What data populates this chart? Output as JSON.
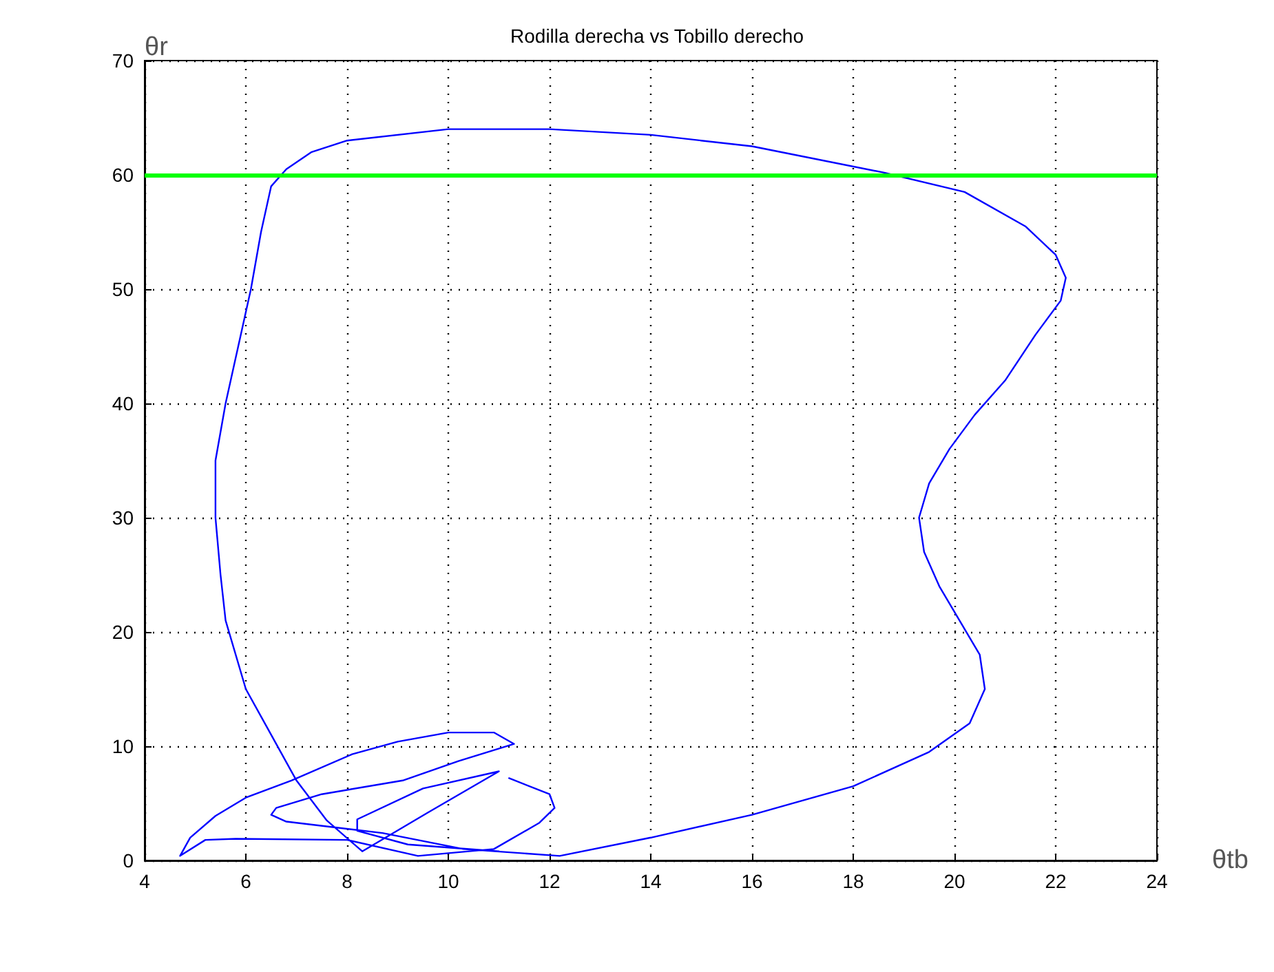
{
  "chart_data": {
    "type": "line",
    "title": "Rodilla derecha vs Tobillo derecho",
    "xlabel": "θtb",
    "ylabel": "θr",
    "xlim": [
      4,
      24
    ],
    "xticks": [
      4,
      6,
      8,
      10,
      12,
      14,
      16,
      18,
      20,
      22,
      24
    ],
    "ylim": [
      0,
      70
    ],
    "yticks": [
      0,
      10,
      20,
      30,
      40,
      50,
      60,
      70
    ],
    "grid": true,
    "marker": "none",
    "line_style": "solid",
    "series": [
      {
        "color": "#0000ff",
        "x": [
          11.2,
          12.0,
          12.1,
          11.8,
          10.9,
          9.4,
          8,
          5.8,
          5.2,
          4.7,
          4.9,
          5.4,
          6.0,
          6.9,
          8.1,
          9,
          10,
          10.9,
          11.3,
          10.2,
          9.1,
          7.5,
          6.6,
          6.5,
          6.8,
          8.7,
          10.3,
          12.2,
          14,
          16,
          18,
          19.5,
          20.3,
          20.6,
          20.5,
          20.1,
          19.7,
          19.4,
          19.3,
          19.5,
          19.9,
          20.4,
          21,
          21.6,
          22.1,
          22.2,
          22,
          21.4,
          20.2,
          18.6,
          16,
          14,
          12,
          10,
          8,
          7.3,
          6.8,
          6.5,
          6.3,
          6.1,
          5.8,
          5.6,
          5.4,
          5.4,
          5.5,
          5.6,
          6.0,
          6.5,
          7,
          7.6,
          8.3,
          9.6,
          11,
          9.5,
          8.2,
          8.2,
          9.2,
          11
        ],
        "values": [
          7.2,
          5.8,
          4.6,
          3.3,
          1.0,
          0.4,
          1.8,
          1.9,
          1.8,
          0.4,
          2,
          3.9,
          5.5,
          7,
          9.3,
          10.4,
          11.2,
          11.2,
          10.2,
          8.7,
          7,
          5.8,
          4.6,
          4,
          3.4,
          2.4,
          1.0,
          0.4,
          2,
          4,
          6.5,
          9.5,
          12,
          15,
          18,
          21,
          24,
          27,
          30,
          33,
          36,
          39,
          42,
          46,
          49,
          51,
          53,
          55.5,
          58.5,
          60.2,
          62.5,
          63.5,
          64,
          64,
          63,
          62,
          60.5,
          59,
          55,
          50,
          44,
          40,
          35,
          30,
          25,
          21,
          15,
          11,
          7,
          3.5,
          0.8,
          4.2,
          7.8,
          6.3,
          3.6,
          2.6,
          1.4,
          0.8
        ]
      }
    ],
    "ref_lines": [
      {
        "axis": "y",
        "value": 60,
        "color": "#00ff00",
        "line_style": "solid"
      }
    ]
  }
}
